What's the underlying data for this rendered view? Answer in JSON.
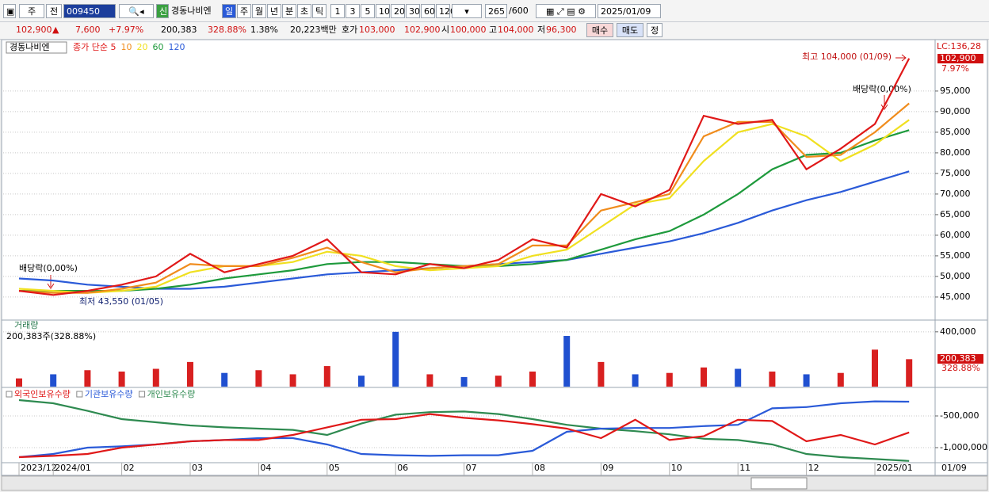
{
  "toolbar": {
    "market": "주",
    "scope": "전",
    "code": "009450",
    "credit": "신",
    "name": "경동나비엔",
    "periods": [
      "일",
      "주",
      "월",
      "년",
      "분",
      "초",
      "틱"
    ],
    "intervals": [
      "1",
      "3",
      "5",
      "10",
      "20",
      "30",
      "60",
      "120"
    ],
    "count": "265",
    "max": "/600",
    "date": "2025/01/09"
  },
  "quote": {
    "price": "102,900",
    "arrow": "▲",
    "change": "7,600",
    "rate": "+7.97%",
    "volume": "200,383",
    "volume_ratio": "328.88%",
    "turnover": "1.38%",
    "amount": "20,223백만",
    "ask_label": "호가",
    "ask": "103,000",
    "bid": "102,900",
    "open_label": "시",
    "open": "100,000",
    "high_label": "고",
    "high": "104,000",
    "low_label": "저",
    "low": "96,300",
    "buy": "매수",
    "sell": "매도",
    "correct": "정"
  },
  "chart_data": [
    {
      "type": "line",
      "title": "경동나비엔",
      "high_label": "최고 104,000 (01/09)",
      "low_label": "최저 43,550 (01/05)",
      "dividend_labels": [
        "배당락(0,00%)",
        "배당락(0,00%)"
      ],
      "lc_label": "LC:136,28",
      "last_value_label": "102,900",
      "last_rate_label": "7.97%",
      "ylim": [
        39600,
        107100
      ],
      "grid": true,
      "yticks": [
        {
          "value": 45000,
          "label": "45,000"
        },
        {
          "value": 50000,
          "label": "50,000"
        },
        {
          "value": 55000,
          "label": "55,000"
        },
        {
          "value": 60000,
          "label": "60,000"
        },
        {
          "value": 65000,
          "label": "65,000"
        },
        {
          "value": 70000,
          "label": "70,000"
        },
        {
          "value": 75000,
          "label": "75,000"
        },
        {
          "value": 80000,
          "label": "80,000"
        },
        {
          "value": 85000,
          "label": "85,000"
        },
        {
          "value": 90000,
          "label": "90,000"
        },
        {
          "value": 95000,
          "label": "95,000"
        }
      ],
      "series": [
        {
          "name": "종가 단순 5",
          "color": "#e01818",
          "values": [
            46500,
            45500,
            46500,
            48000,
            50000,
            55500,
            51000,
            53000,
            55000,
            59000,
            51000,
            50500,
            53000,
            52000,
            54000,
            59000,
            57000,
            70000,
            67000,
            71000,
            89000,
            87000,
            88000,
            76000,
            81000,
            87000,
            102900
          ]
        },
        {
          "name": "10",
          "color": "#f08c1c",
          "values": [
            46500,
            46000,
            46000,
            47000,
            48500,
            53000,
            52500,
            52500,
            54500,
            57000,
            53500,
            51000,
            52000,
            52500,
            53000,
            57500,
            57500,
            66000,
            68000,
            70000,
            84000,
            87500,
            87500,
            79000,
            79500,
            85000,
            92000
          ]
        },
        {
          "name": "20",
          "color": "#f0e020",
          "values": [
            47000,
            46500,
            46000,
            46500,
            47500,
            51000,
            52500,
            52500,
            53500,
            56000,
            55000,
            52500,
            51500,
            52000,
            52500,
            55000,
            56500,
            62000,
            67500,
            69000,
            78000,
            85000,
            87000,
            84000,
            78000,
            82000,
            88000
          ]
        },
        {
          "name": "60",
          "color": "#1e9a3c",
          "values": [
            46500,
            46500,
            46500,
            46500,
            47000,
            48000,
            49500,
            50500,
            51500,
            53000,
            53500,
            53500,
            53000,
            52500,
            52500,
            53000,
            54000,
            56500,
            59000,
            61000,
            65000,
            70000,
            76000,
            79500,
            80000,
            83000,
            85500
          ]
        },
        {
          "name": "120",
          "color": "#2a5ad8",
          "values": [
            49500,
            49000,
            48000,
            47500,
            47000,
            47000,
            47500,
            48500,
            49500,
            50500,
            51000,
            51500,
            52000,
            52500,
            53000,
            53500,
            54000,
            55500,
            57000,
            58500,
            60500,
            63000,
            66000,
            68500,
            70500,
            73000,
            75500
          ]
        }
      ]
    },
    {
      "type": "bar",
      "title": "거래량",
      "subtitle": "200,383주(328.88%)",
      "last_value_label": "200,383",
      "last_rate_label": "328.88%",
      "up_color": "#d82020",
      "down_color": "#2050d0",
      "ylim": [
        0,
        480000
      ],
      "yticks": [
        {
          "value": 400000,
          "label": "400,000"
        }
      ],
      "values": [
        60000,
        90000,
        120000,
        110000,
        130000,
        180000,
        100000,
        120000,
        90000,
        150000,
        80000,
        400000,
        90000,
        70000,
        80000,
        110000,
        370000,
        180000,
        90000,
        100000,
        140000,
        130000,
        110000,
        90000,
        100000,
        270000,
        200383
      ]
    },
    {
      "type": "line",
      "end_label": "01/09",
      "ylim": [
        -1225000,
        -62500
      ],
      "grid": true,
      "yticks": [
        {
          "value": -500000,
          "label": "-500,000"
        },
        {
          "value": -1000000,
          "label": "-1,000,000"
        }
      ],
      "categories": [
        "2023/12",
        "2024/01",
        null,
        "02",
        null,
        "03",
        null,
        "04",
        null,
        "05",
        null,
        "06",
        null,
        "07",
        null,
        "08",
        null,
        "09",
        null,
        "10",
        null,
        "11",
        null,
        "12",
        null,
        "2025/01",
        null
      ],
      "series": [
        {
          "name": "외국인보유수량",
          "color": "#e01818",
          "values": [
            -1150000,
            -1130000,
            -1100000,
            -1000000,
            -950000,
            -900000,
            -880000,
            -880000,
            -800000,
            -680000,
            -560000,
            -550000,
            -470000,
            -530000,
            -570000,
            -630000,
            -700000,
            -850000,
            -560000,
            -880000,
            -820000,
            -560000,
            -580000,
            -900000,
            -800000,
            -950000,
            -760000
          ]
        },
        {
          "name": "기관보유수량",
          "color": "#2a5ad8",
          "values": [
            -1150000,
            -1100000,
            -1000000,
            -980000,
            -950000,
            -900000,
            -880000,
            -850000,
            -850000,
            -950000,
            -1100000,
            -1120000,
            -1130000,
            -1120000,
            -1120000,
            -1050000,
            -750000,
            -700000,
            -690000,
            -690000,
            -660000,
            -640000,
            -380000,
            -360000,
            -300000,
            -270000,
            -275000
          ]
        },
        {
          "name": "개인보유수량",
          "color": "#2e8a50",
          "values": [
            -250000,
            -300000,
            -420000,
            -550000,
            -600000,
            -650000,
            -680000,
            -700000,
            -720000,
            -800000,
            -620000,
            -480000,
            -440000,
            -430000,
            -470000,
            -550000,
            -640000,
            -700000,
            -740000,
            -790000,
            -860000,
            -880000,
            -950000,
            -1100000,
            -1150000,
            -1180000,
            -1210000
          ]
        }
      ]
    }
  ]
}
